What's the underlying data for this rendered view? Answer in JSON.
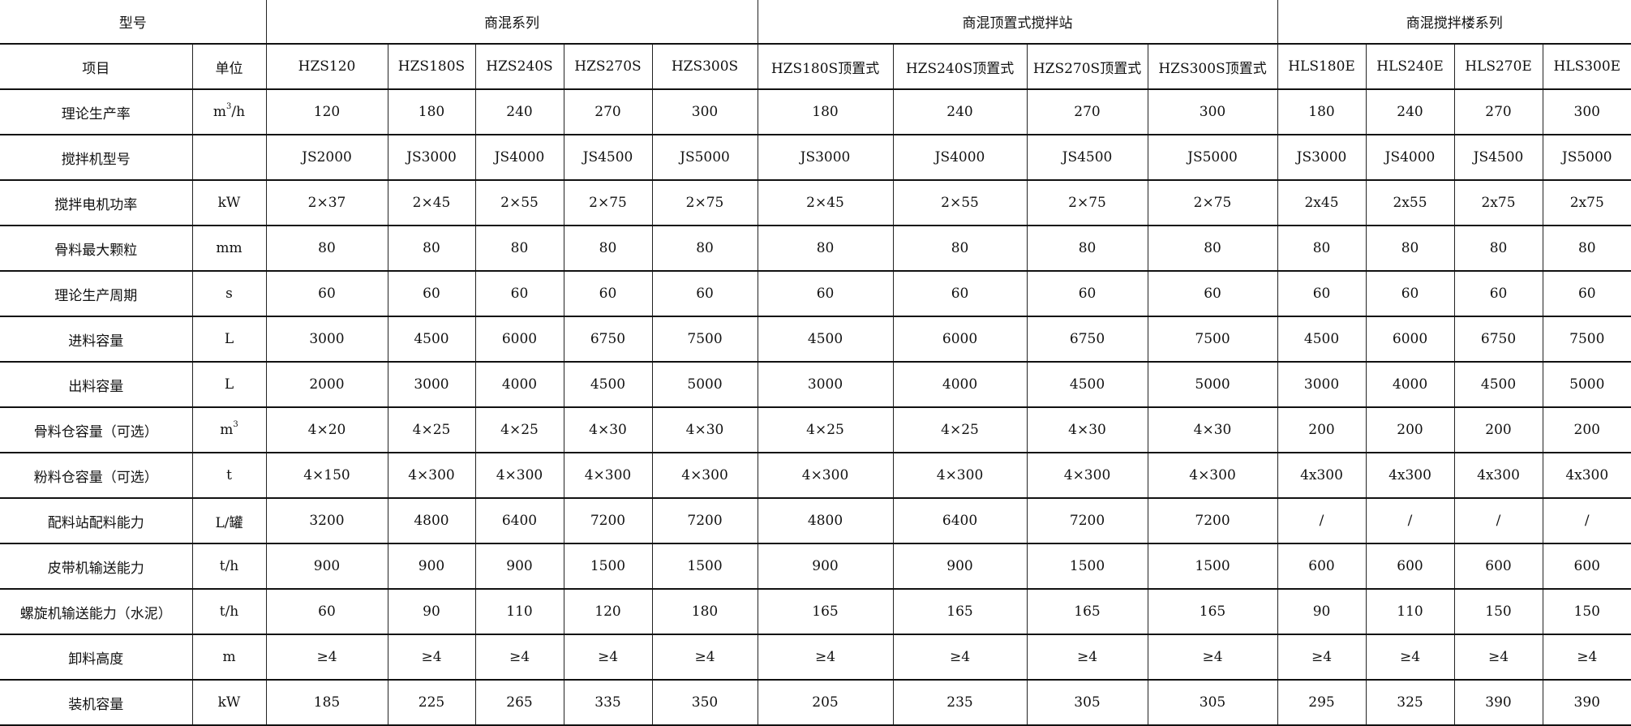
{
  "header": {
    "model_label": "型号",
    "groups": [
      {
        "label": "商混系列",
        "span": 5
      },
      {
        "label": "商混顶置式搅拌站",
        "span": 4
      },
      {
        "label": "商混搅拌楼系列",
        "span": 4
      }
    ],
    "item_label": "项目",
    "unit_label": "单位",
    "models": [
      "HZS120",
      "HZS180S",
      "HZS240S",
      "HZS270S",
      "HZS300S",
      "HZS180S顶置式",
      "HZS240S顶置式",
      "HZS270S顶置式",
      "HZS300S顶置式",
      "HLS180E",
      "HLS240E",
      "HLS270E",
      "HLS300E"
    ]
  },
  "rows": [
    {
      "item": "理论生产率",
      "unit": "m",
      "unit_sup": "3",
      "unit_suffix": "/h",
      "values": [
        "120",
        "180",
        "240",
        "270",
        "300",
        "180",
        "240",
        "270",
        "300",
        "180",
        "240",
        "270",
        "300"
      ]
    },
    {
      "item": "搅拌机型号",
      "unit": "",
      "values": [
        "JS2000",
        "JS3000",
        "JS4000",
        "JS4500",
        "JS5000",
        "JS3000",
        "JS4000",
        "JS4500",
        "JS5000",
        "JS3000",
        "JS4000",
        "JS4500",
        "JS5000"
      ]
    },
    {
      "item": "搅拌电机功率",
      "unit": "kW",
      "values": [
        "2×37",
        "2×45",
        "2×55",
        "2×75",
        "2×75",
        "2×45",
        "2×55",
        "2×75",
        "2×75",
        "2x45",
        "2x55",
        "2x75",
        "2x75"
      ]
    },
    {
      "item": "骨料最大颗粒",
      "unit": "mm",
      "values": [
        "80",
        "80",
        "80",
        "80",
        "80",
        "80",
        "80",
        "80",
        "80",
        "80",
        "80",
        "80",
        "80"
      ]
    },
    {
      "item": "理论生产周期",
      "unit": "s",
      "values": [
        "60",
        "60",
        "60",
        "60",
        "60",
        "60",
        "60",
        "60",
        "60",
        "60",
        "60",
        "60",
        "60"
      ]
    },
    {
      "item": "进料容量",
      "unit": "L",
      "values": [
        "3000",
        "4500",
        "6000",
        "6750",
        "7500",
        "4500",
        "6000",
        "6750",
        "7500",
        "4500",
        "6000",
        "6750",
        "7500"
      ]
    },
    {
      "item": "出料容量",
      "unit": "L",
      "values": [
        "2000",
        "3000",
        "4000",
        "4500",
        "5000",
        "3000",
        "4000",
        "4500",
        "5000",
        "3000",
        "4000",
        "4500",
        "5000"
      ]
    },
    {
      "item": "骨料仓容量（可选）",
      "unit": "m",
      "unit_sup": "3",
      "unit_suffix": "",
      "values": [
        "4×20",
        "4×25",
        "4×25",
        "4×30",
        "4×30",
        "4×25",
        "4×25",
        "4×30",
        "4×30",
        "200",
        "200",
        "200",
        "200"
      ]
    },
    {
      "item": "粉料仓容量（可选）",
      "unit": "t",
      "values": [
        "4×150",
        "4×300",
        "4×300",
        "4×300",
        "4×300",
        "4×300",
        "4×300",
        "4×300",
        "4×300",
        "4x300",
        "4x300",
        "4x300",
        "4x300"
      ]
    },
    {
      "item": "配料站配料能力",
      "unit": "L/罐",
      "values": [
        "3200",
        "4800",
        "6400",
        "7200",
        "7200",
        "4800",
        "6400",
        "7200",
        "7200",
        "/",
        "/",
        "/",
        "/"
      ]
    },
    {
      "item": "皮带机输送能力",
      "unit": "t/h",
      "values": [
        "900",
        "900",
        "900",
        "1500",
        "1500",
        "900",
        "900",
        "1500",
        "1500",
        "600",
        "600",
        "600",
        "600"
      ]
    },
    {
      "item": "螺旋机输送能力（水泥）",
      "unit": "t/h",
      "values": [
        "60",
        "90",
        "110",
        "120",
        "180",
        "165",
        "165",
        "165",
        "165",
        "90",
        "110",
        "150",
        "150"
      ]
    },
    {
      "item": "卸料高度",
      "unit": "m",
      "values": [
        "≥4",
        "≥4",
        "≥4",
        "≥4",
        "≥4",
        "≥4",
        "≥4",
        "≥4",
        "≥4",
        "≥4",
        "≥4",
        "≥4",
        "≥4"
      ]
    },
    {
      "item": "装机容量",
      "unit": "kW",
      "values": [
        "185",
        "225",
        "265",
        "335",
        "350",
        "205",
        "235",
        "305",
        "305",
        "295",
        "325",
        "390",
        "390"
      ]
    }
  ]
}
